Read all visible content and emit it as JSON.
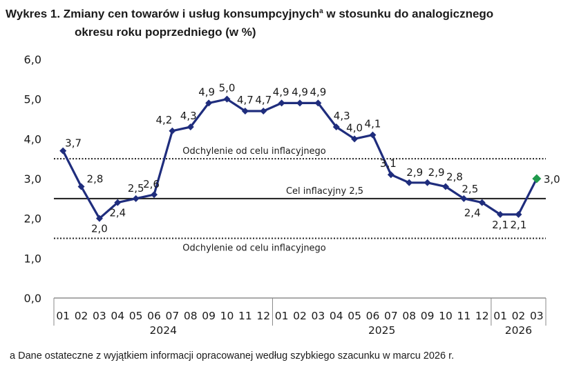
{
  "title_line1": "Wykres 1. Zmiany cen towarów i usług konsumpcyjnych",
  "title_sup": "a",
  "title_line1_end": " w stosunku do analogicznego",
  "title_line2": "okresu roku poprzedniego (w %)",
  "footnote": "a Dane ostateczne z wyjątkiem informacji opracowanej według szybkiego szacunku w marcu 2026 r.",
  "chart_data": {
    "type": "line",
    "categories": [
      "01",
      "02",
      "03",
      "04",
      "05",
      "06",
      "07",
      "08",
      "09",
      "10",
      "11",
      "12",
      "01",
      "02",
      "03",
      "04",
      "05",
      "06",
      "07",
      "08",
      "09",
      "10",
      "11",
      "12",
      "01",
      "02",
      "03"
    ],
    "year_labels": [
      "2024",
      "2025",
      "2026"
    ],
    "values": [
      3.7,
      2.8,
      2.0,
      2.4,
      2.5,
      2.6,
      4.2,
      4.3,
      4.9,
      5.0,
      4.7,
      4.7,
      4.9,
      4.9,
      4.9,
      4.3,
      4.0,
      4.1,
      3.1,
      2.9,
      2.9,
      2.8,
      2.5,
      2.4,
      2.1,
      2.1,
      3.0
    ],
    "value_labels": [
      "3,7",
      "2,8",
      "2,0",
      "2,4",
      "2,5",
      "2,6",
      "4,2",
      "4,3",
      "4,9",
      "5,0",
      "4,7",
      "4,7",
      "4,9",
      "4,9",
      "4,9",
      "4,3",
      "4,0",
      "4,1",
      "3,1",
      "2,9",
      "2,9",
      "2,8",
      "2,5",
      "2,4",
      "2,1",
      "2,1",
      "3,0"
    ],
    "ylim": [
      0,
      6
    ],
    "yticks": [
      "0,0",
      "1,0",
      "2,0",
      "3,0",
      "4,0",
      "5,0",
      "6,0"
    ],
    "reference_lines": [
      {
        "value": 3.5,
        "label": "Odchylenie od celu inflacyjnego",
        "style": "dotted"
      },
      {
        "value": 2.5,
        "label": "Cel inflacyjny 2,5",
        "style": "solid"
      },
      {
        "value": 1.5,
        "label": "Odchylenie od celu inflacyjnego",
        "style": "dotted"
      }
    ],
    "colors": {
      "line": "#1f2d7d",
      "last_point": "#1f9a4c"
    }
  }
}
